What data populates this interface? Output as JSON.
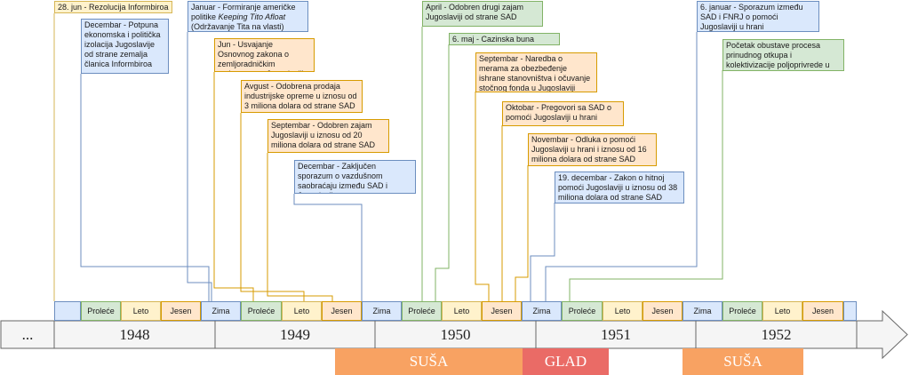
{
  "events": [
    {
      "id": "e1",
      "color": "yellow",
      "text": "28. jun - Rezolucija Informbiroa"
    },
    {
      "id": "e2",
      "color": "blue",
      "text": "Decembar - Potpuna ekonomska i politička izolacija Jugoslavije od strane zemalja članica Informbiroa"
    },
    {
      "id": "e3",
      "color": "blue",
      "pre": "Januar - Formiranje američke politike ",
      "em": "Keeping Tito Afloat",
      "post": " (Održavanje Tita na vlasti)"
    },
    {
      "id": "e4",
      "color": "orange",
      "text": "Jun - Usvajanje Osnovnog zakona o zemljoradničkim zadrugama u Jugoslaviji"
    },
    {
      "id": "e5",
      "color": "orange",
      "text": "Avgust - Odobrena prodaja industrijske opreme u iznosu od 3 miliona dolara od strane SAD"
    },
    {
      "id": "e6",
      "color": "orange",
      "text": "Septembar - Odobren zajam Jugoslaviji u iznosu od 20 miliona dolara od strane SAD"
    },
    {
      "id": "e7",
      "color": "blue",
      "text": "Decembar - Zaključen sporazum o vazdušnom saobraćaju između SAD i Jugoslavije"
    },
    {
      "id": "e8",
      "color": "green",
      "text": "April - Odobren drugi zajam Jugoslaviji od strane SAD"
    },
    {
      "id": "e9",
      "color": "green",
      "text": "6. maj - Cazinska buna"
    },
    {
      "id": "e10",
      "color": "orange",
      "text": "Septembar - Naredba o merama za obezbeđenje ishrane stanovništva i očuvanje stočnog fonda u Jugoslaviji"
    },
    {
      "id": "e11",
      "color": "orange",
      "text": "Oktobar - Pregovori sa SAD o pomoći Jugoslaviji u hrani"
    },
    {
      "id": "e12",
      "color": "orange",
      "text": "Novembar - Odluka o pomoći Jugoslaviji u hrani i iznosu od 16 miliona dolara od strane SAD"
    },
    {
      "id": "e13",
      "color": "blue",
      "text": "19. decembar - Zakon o hitnoj pomoći Jugoslaviji u iznosu od 38 miliona dolara od strane SAD"
    },
    {
      "id": "e14",
      "color": "blue",
      "text": "6. januar - Sporazum između SAD i FNRJ o pomoći Jugoslaviji u hrani"
    },
    {
      "id": "e15",
      "color": "green",
      "text": "Početak obustave procesa prinudnog otkupa i kolektivizacije poljoprivrede u Jugoslaviji"
    }
  ],
  "seasons": [
    {
      "label": "",
      "color": "blue"
    },
    {
      "label": "Proleće",
      "color": "green"
    },
    {
      "label": "Leto",
      "color": "yellow"
    },
    {
      "label": "Jesen",
      "color": "orange"
    },
    {
      "label": "Zima",
      "color": "blue"
    },
    {
      "label": "Proleće",
      "color": "green"
    },
    {
      "label": "Leto",
      "color": "yellow"
    },
    {
      "label": "Jesen",
      "color": "orange"
    },
    {
      "label": "Zima",
      "color": "blue"
    },
    {
      "label": "Proleće",
      "color": "green"
    },
    {
      "label": "Leto",
      "color": "yellow"
    },
    {
      "label": "Jesen",
      "color": "orange"
    },
    {
      "label": "Zima",
      "color": "blue"
    },
    {
      "label": "Proleće",
      "color": "green"
    },
    {
      "label": "Leto",
      "color": "yellow"
    },
    {
      "label": "Jesen",
      "color": "orange"
    },
    {
      "label": "Zima",
      "color": "blue"
    },
    {
      "label": "Proleće",
      "color": "green"
    },
    {
      "label": "Leto",
      "color": "yellow"
    },
    {
      "label": "Jesen",
      "color": "orange"
    },
    {
      "label": "",
      "color": "blue"
    }
  ],
  "timeline": {
    "start": "...",
    "years": [
      "1948",
      "1949",
      "1950",
      "1951",
      "1952"
    ]
  },
  "periods": [
    {
      "label": "SUŠA",
      "color": "#f8a262"
    },
    {
      "label": "GLAD",
      "color": "#ea6b66"
    },
    {
      "label": "SUŠA",
      "color": "#f8a262"
    }
  ],
  "colors": {
    "yellow_fill": "#fff2cc",
    "yellow_line": "#d6b656",
    "blue_fill": "#dae8fc",
    "blue_line": "#6c8ebf",
    "orange_fill": "#ffe6cc",
    "orange_line": "#d79b00",
    "green_fill": "#d5e8d4",
    "green_line": "#82b366",
    "timeline_fill": "#f5f5f5",
    "timeline_line": "#666666"
  }
}
